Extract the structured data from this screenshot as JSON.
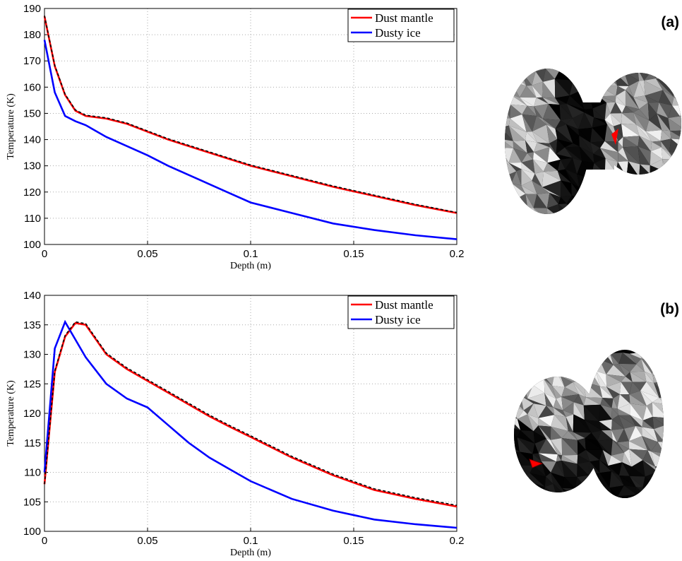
{
  "chart_data": [
    {
      "type": "line",
      "panel_label": "(a)",
      "x_label": "Depth (m)",
      "y_label": "Temperature (K)",
      "x": [
        0,
        0.005,
        0.01,
        0.015,
        0.02,
        0.03,
        0.04,
        0.05,
        0.06,
        0.07,
        0.08,
        0.09,
        0.1,
        0.12,
        0.14,
        0.16,
        0.18,
        0.2
      ],
      "series": [
        {
          "name": "Dust mantle",
          "color": "#ff0000",
          "values": [
            187,
            168,
            157,
            151,
            149,
            148,
            146,
            143,
            140,
            137.5,
            135,
            132.5,
            130,
            126,
            122,
            118.5,
            115,
            112
          ]
        },
        {
          "name": "Dusty ice",
          "color": "#0000ff",
          "values": [
            178,
            158,
            149,
            147,
            145.5,
            141,
            137.5,
            134,
            130,
            126.5,
            123,
            119.5,
            116,
            112,
            108,
            105.5,
            103.5,
            102
          ]
        },
        {
          "color": "#000000",
          "dashed": true,
          "values": [
            187.3,
            168.3,
            157.3,
            151.3,
            149.3,
            148.3,
            146.3,
            143.3,
            140.3,
            137.8,
            135.3,
            132.8,
            130.3,
            126.3,
            122.3,
            118.8,
            115.3,
            112.2
          ]
        }
      ],
      "xlim": [
        0,
        0.2
      ],
      "xticks": [
        0,
        0.05,
        0.1,
        0.15,
        0.2
      ],
      "ylim": [
        100,
        190
      ],
      "yticks": [
        100,
        110,
        120,
        130,
        140,
        150,
        160,
        170,
        180,
        190
      ],
      "grid": true,
      "legend": "upper-right"
    },
    {
      "type": "line",
      "panel_label": "(b)",
      "x_label": "Depth (m)",
      "y_label": "Temperature (K)",
      "x": [
        0,
        0.005,
        0.01,
        0.015,
        0.02,
        0.03,
        0.04,
        0.05,
        0.06,
        0.07,
        0.08,
        0.09,
        0.1,
        0.12,
        0.14,
        0.16,
        0.18,
        0.2
      ],
      "series": [
        {
          "name": "Dust mantle",
          "color": "#ff0000",
          "values": [
            108,
            127,
            133,
            135.3,
            135,
            130,
            127.5,
            125.5,
            123.5,
            121.5,
            119.5,
            117.7,
            116,
            112.5,
            109.5,
            107,
            105.5,
            104.2
          ]
        },
        {
          "name": "Dusty ice",
          "color": "#0000ff",
          "values": [
            110,
            131,
            135.5,
            132.5,
            129.5,
            125,
            122.5,
            121,
            118,
            115,
            112.5,
            110.5,
            108.5,
            105.5,
            103.5,
            102,
            101.2,
            100.6
          ]
        },
        {
          "color": "#000000",
          "dashed": true,
          "values": [
            108,
            127.2,
            133.2,
            135.5,
            135.2,
            130.2,
            127.7,
            125.7,
            123.7,
            121.7,
            119.7,
            117.9,
            116.2,
            112.7,
            109.7,
            107.2,
            105.7,
            104.4
          ]
        }
      ],
      "xlim": [
        0,
        0.2
      ],
      "xticks": [
        0,
        0.05,
        0.1,
        0.15,
        0.2
      ],
      "ylim": [
        100,
        140
      ],
      "yticks": [
        100,
        105,
        110,
        115,
        120,
        125,
        130,
        135,
        140
      ],
      "grid": true,
      "legend": "upper-right"
    }
  ]
}
